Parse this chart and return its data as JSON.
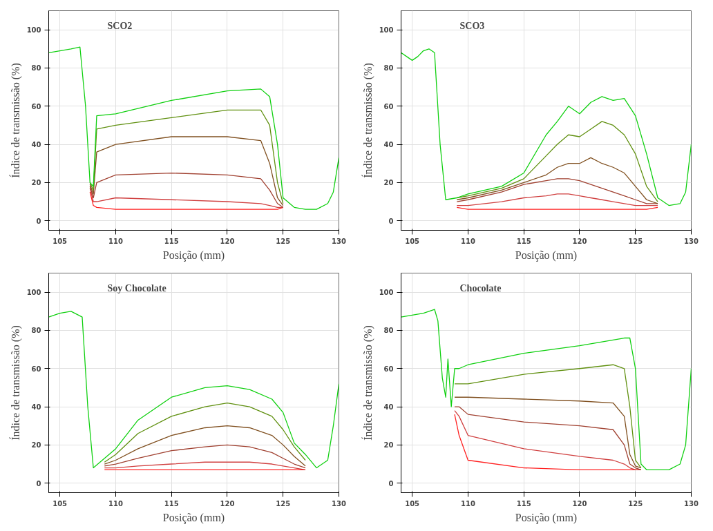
{
  "chart_data": [
    {
      "type": "line",
      "title": "SCO2",
      "xlabel": "Posição (mm)",
      "ylabel": "Índice de transmissão (%)",
      "xlim": [
        104,
        130
      ],
      "ylim": [
        -5,
        110
      ],
      "xticks": [
        105,
        110,
        115,
        120,
        125,
        130
      ],
      "yticks": [
        0,
        20,
        40,
        60,
        80,
        100
      ],
      "grid": true,
      "marker": "none",
      "line_style": "solid",
      "x": [
        104,
        105,
        106,
        106.8,
        107.3,
        107.7,
        108,
        108.3,
        110,
        115,
        120,
        123,
        123.8,
        124.5,
        125,
        126,
        127,
        128,
        129,
        129.5,
        130
      ],
      "series": [
        {
          "color": "#ff2020",
          "values": [
            null,
            null,
            null,
            null,
            null,
            15,
            8,
            7,
            6,
            6,
            6,
            6,
            6,
            6,
            7,
            null,
            null,
            null,
            null,
            null,
            null
          ]
        },
        {
          "color": "#d04040",
          "values": [
            null,
            null,
            null,
            null,
            null,
            17,
            10,
            10,
            12,
            11,
            10,
            9,
            8,
            7,
            7,
            null,
            null,
            null,
            null,
            null,
            null
          ]
        },
        {
          "color": "#a04030",
          "values": [
            null,
            null,
            null,
            null,
            null,
            18,
            12,
            20,
            24,
            25,
            24,
            22,
            16,
            9,
            7,
            null,
            null,
            null,
            null,
            null,
            null
          ]
        },
        {
          "color": "#805020",
          "values": [
            null,
            null,
            null,
            null,
            null,
            19,
            14,
            36,
            40,
            44,
            44,
            42,
            30,
            12,
            8,
            null,
            null,
            null,
            null,
            null,
            null
          ]
        },
        {
          "color": "#609010",
          "values": [
            null,
            null,
            null,
            null,
            null,
            20,
            16,
            48,
            50,
            54,
            58,
            58,
            50,
            20,
            9,
            null,
            null,
            null,
            null,
            null,
            null
          ]
        },
        {
          "color": "#10d010",
          "values": [
            88,
            89,
            90,
            91,
            60,
            20,
            18,
            55,
            56,
            63,
            68,
            69,
            65,
            40,
            12,
            7,
            6,
            6,
            9,
            15,
            33
          ]
        }
      ]
    },
    {
      "type": "line",
      "title": "SCO3",
      "xlabel": "Posição (mm)",
      "ylabel": "Índice de transmissão (%)",
      "xlim": [
        104,
        130
      ],
      "ylim": [
        -5,
        110
      ],
      "xticks": [
        105,
        110,
        115,
        120,
        125,
        130
      ],
      "yticks": [
        0,
        20,
        40,
        60,
        80,
        100
      ],
      "grid": true,
      "marker": "none",
      "line_style": "solid",
      "x": [
        104,
        104.5,
        105,
        105.5,
        106,
        106.5,
        107,
        107.5,
        108,
        109,
        110,
        113,
        115,
        117,
        118,
        119,
        120,
        121,
        122,
        123,
        124,
        125,
        126,
        127,
        128,
        129,
        129.5,
        130
      ],
      "series": [
        {
          "color": "#ff2020",
          "values": [
            null,
            null,
            null,
            null,
            null,
            null,
            null,
            null,
            null,
            7,
            6,
            6,
            6,
            6,
            6,
            6,
            6,
            6,
            6,
            6,
            6,
            6,
            6,
            7,
            null,
            null,
            null,
            null
          ]
        },
        {
          "color": "#d04040",
          "values": [
            null,
            null,
            null,
            null,
            null,
            null,
            null,
            null,
            null,
            8,
            8,
            10,
            12,
            13,
            14,
            14,
            13,
            12,
            11,
            10,
            9,
            8,
            8,
            8,
            null,
            null,
            null,
            null
          ]
        },
        {
          "color": "#a04030",
          "values": [
            null,
            null,
            null,
            null,
            null,
            null,
            null,
            null,
            null,
            10,
            11,
            15,
            19,
            21,
            22,
            22,
            21,
            19,
            17,
            15,
            13,
            11,
            9,
            9,
            null,
            null,
            null,
            null
          ]
        },
        {
          "color": "#805020",
          "values": [
            null,
            null,
            null,
            null,
            null,
            null,
            null,
            null,
            null,
            11,
            12,
            16,
            20,
            24,
            28,
            30,
            30,
            33,
            30,
            28,
            25,
            18,
            11,
            9,
            null,
            null,
            null,
            null
          ]
        },
        {
          "color": "#609010",
          "values": [
            null,
            null,
            null,
            null,
            null,
            null,
            null,
            null,
            null,
            12,
            13,
            17,
            22,
            34,
            40,
            45,
            44,
            48,
            52,
            50,
            45,
            35,
            18,
            10,
            null,
            null,
            null,
            null
          ]
        },
        {
          "color": "#10d010",
          "values": [
            88,
            86,
            84,
            86,
            89,
            90,
            88,
            40,
            11,
            12,
            14,
            18,
            25,
            45,
            52,
            60,
            56,
            62,
            65,
            63,
            64,
            55,
            35,
            12,
            8,
            9,
            15,
            40
          ]
        }
      ]
    },
    {
      "type": "line",
      "title": "Soy Chocolate",
      "xlabel": "Posição (mm)",
      "ylabel": "Índice de transmissão (%)",
      "xlim": [
        104,
        130
      ],
      "ylim": [
        -5,
        110
      ],
      "xticks": [
        105,
        110,
        115,
        120,
        125,
        130
      ],
      "yticks": [
        0,
        20,
        40,
        60,
        80,
        100
      ],
      "grid": true,
      "marker": "none",
      "line_style": "solid",
      "x": [
        104,
        105,
        106,
        107,
        107.5,
        108,
        109,
        110,
        112,
        115,
        118,
        120,
        122,
        124,
        125,
        126,
        127,
        128,
        129,
        129.5,
        130
      ],
      "series": [
        {
          "color": "#ff2020",
          "values": [
            null,
            null,
            null,
            null,
            null,
            null,
            7,
            7,
            7,
            7,
            7,
            7,
            7,
            7,
            7,
            7,
            7,
            null,
            null,
            null,
            null
          ]
        },
        {
          "color": "#d04040",
          "values": [
            null,
            null,
            null,
            null,
            null,
            null,
            8,
            8,
            9,
            10,
            11,
            11,
            11,
            10,
            9,
            8,
            7,
            null,
            null,
            null,
            null
          ]
        },
        {
          "color": "#a04030",
          "values": [
            null,
            null,
            null,
            null,
            null,
            null,
            9,
            10,
            13,
            17,
            19,
            20,
            19,
            16,
            13,
            10,
            8,
            null,
            null,
            null,
            null
          ]
        },
        {
          "color": "#805020",
          "values": [
            null,
            null,
            null,
            null,
            null,
            null,
            10,
            12,
            18,
            25,
            29,
            30,
            29,
            25,
            20,
            14,
            9,
            null,
            null,
            null,
            null
          ]
        },
        {
          "color": "#609010",
          "values": [
            null,
            null,
            null,
            null,
            null,
            null,
            11,
            15,
            26,
            35,
            40,
            42,
            40,
            35,
            28,
            19,
            12,
            null,
            null,
            null,
            null
          ]
        },
        {
          "color": "#10d010",
          "values": [
            87,
            89,
            90,
            87,
            40,
            8,
            13,
            18,
            33,
            45,
            50,
            51,
            49,
            44,
            37,
            21,
            15,
            8,
            12,
            30,
            52
          ]
        }
      ]
    },
    {
      "type": "line",
      "title": "Chocolate",
      "xlabel": "Posição (mm)",
      "ylabel": "Índice de transmissão (%)",
      "xlim": [
        104,
        130
      ],
      "ylim": [
        -5,
        110
      ],
      "xticks": [
        105,
        110,
        115,
        120,
        125,
        130
      ],
      "yticks": [
        0,
        20,
        40,
        60,
        80,
        100
      ],
      "grid": true,
      "marker": "none",
      "line_style": "solid",
      "x": [
        104,
        105,
        106,
        107,
        107.3,
        107.7,
        108,
        108.2,
        108.5,
        108.8,
        109.2,
        110,
        115,
        120,
        123,
        124,
        124.5,
        125,
        125.5,
        126,
        127,
        128,
        129,
        129.5,
        130
      ],
      "series": [
        {
          "color": "#ff2020",
          "values": [
            null,
            null,
            null,
            null,
            null,
            null,
            null,
            null,
            null,
            36,
            25,
            12,
            8,
            7,
            7,
            7,
            7,
            7,
            7,
            null,
            null,
            null,
            null,
            null,
            null
          ]
        },
        {
          "color": "#d04040",
          "values": [
            null,
            null,
            null,
            null,
            null,
            null,
            null,
            null,
            null,
            38,
            35,
            25,
            18,
            14,
            12,
            10,
            8,
            7,
            7,
            null,
            null,
            null,
            null,
            null,
            null
          ]
        },
        {
          "color": "#a04030",
          "values": [
            null,
            null,
            null,
            null,
            null,
            null,
            null,
            null,
            null,
            40,
            40,
            36,
            32,
            30,
            28,
            20,
            10,
            8,
            7,
            null,
            null,
            null,
            null,
            null,
            null
          ]
        },
        {
          "color": "#805020",
          "values": [
            null,
            null,
            null,
            null,
            null,
            null,
            null,
            null,
            null,
            45,
            45,
            45,
            44,
            43,
            42,
            35,
            15,
            9,
            8,
            null,
            null,
            null,
            null,
            null,
            null
          ]
        },
        {
          "color": "#609010",
          "values": [
            null,
            null,
            null,
            null,
            null,
            null,
            null,
            null,
            null,
            52,
            52,
            52,
            57,
            60,
            62,
            60,
            40,
            12,
            8,
            null,
            null,
            null,
            null,
            null,
            null
          ]
        },
        {
          "color": "#10d010",
          "values": [
            87,
            88,
            89,
            91,
            85,
            55,
            45,
            65,
            40,
            60,
            60,
            62,
            68,
            72,
            75,
            76,
            76,
            60,
            10,
            7,
            7,
            7,
            10,
            20,
            60
          ]
        }
      ]
    }
  ]
}
